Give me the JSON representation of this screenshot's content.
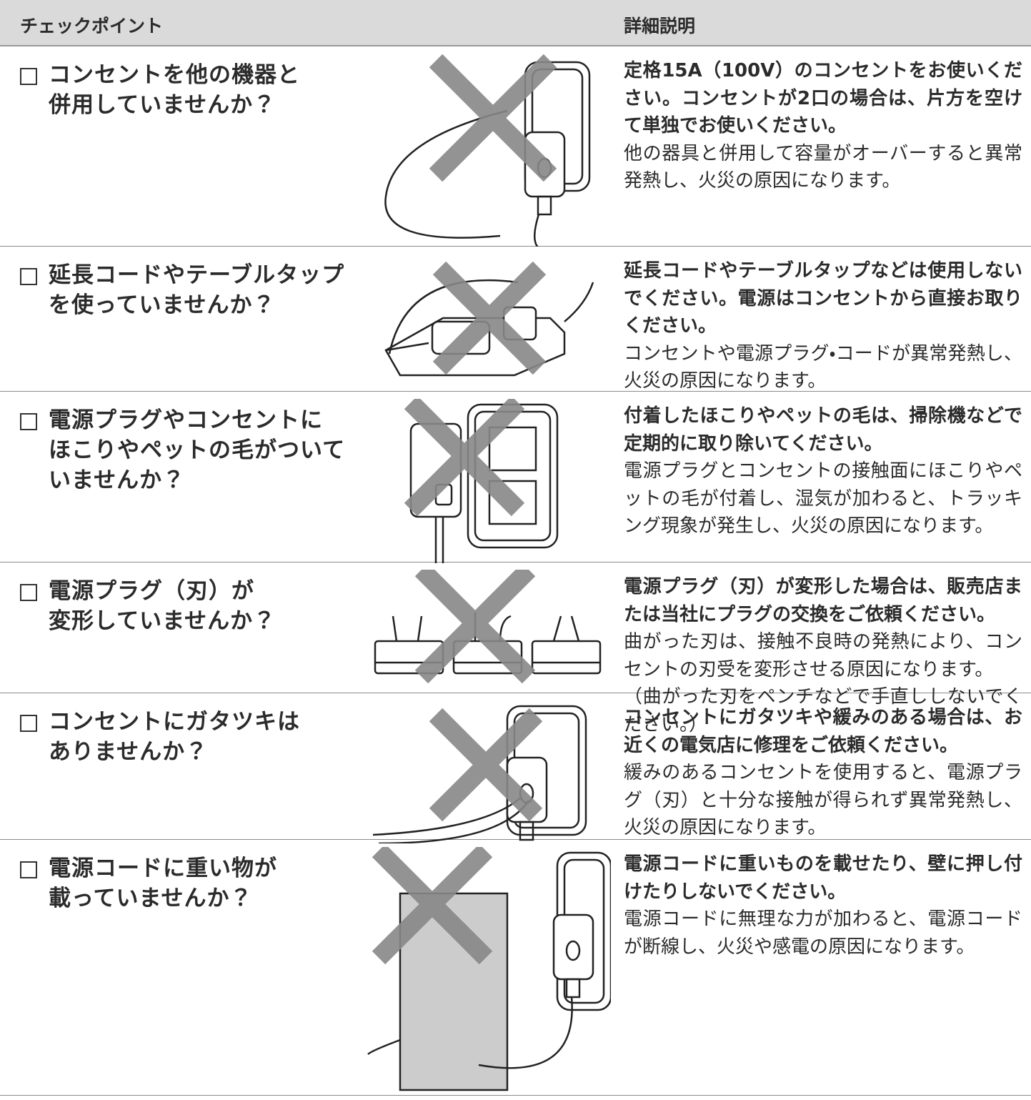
{
  "header": {
    "col1": "チェックポイント",
    "col2": "詳細説明"
  },
  "rows": [
    {
      "checkpoint": [
        "コンセントを他の機器と",
        "併用していませんか？"
      ],
      "detail": [
        "定格15A（100V）のコンセントをお使いください。コンセントが2口の場合は、片方を空けて単独でお使いください。",
        "他の器具と併用して容量がオーバーすると異常発熱し、火災の原因になります。"
      ]
    },
    {
      "checkpoint": [
        "延長コードやテーブルタップ",
        "を使っていませんか？"
      ],
      "detail": [
        "延長コードやテーブルタップなどは使用しないでください。電源はコンセントから直接お取りください。",
        "コンセントや電源プラグ・コードが異常発熱し、火災の原因になります。"
      ]
    },
    {
      "checkpoint": [
        "電源プラグやコンセントに",
        "ほこりやペットの毛がついて",
        "いませんか？"
      ],
      "detail": [
        "付着したほこりやペットの毛は、掃除機などで定期的に取り除いてください。",
        "電源プラグとコンセントの接触面にほこりやペットの毛が付着し、湿気が加わると、トラッキング現象が発生し、火災の原因になります。"
      ]
    },
    {
      "checkpoint": [
        "電源プラグ（刃）が",
        "変形していませんか？"
      ],
      "detail": [
        "電源プラグ（刃）が変形した場合は、販売店または当社にプラグの交換をご依頼ください。",
        "曲がった刃は、接触不良時の発熱により、コンセントの刃受を変形させる原因になります。",
        "（曲がった刃をペンチなどで手直ししないでください。）"
      ]
    },
    {
      "checkpoint": [
        "コンセントにガタツキは",
        "ありませんか？"
      ],
      "detail": [
        "コンセントにガタツキや緩みのある場合は、お近くの電気店に修理をご依頼ください。",
        "緩みのあるコンセントを使用すると、電源プラグ（刃）と十分な接触が得られず異常発熱し、火災の原因になります。"
      ]
    },
    {
      "checkpoint": [
        "電源コードに重い物が",
        "載っていませんか？"
      ],
      "detail": [
        "電源コードに重いものを載せたり、壁に押し付けたりしないでください。",
        "電源コードに無理な力が加わると、電源コードが断線し、火災や感電の原因になります。"
      ]
    }
  ]
}
